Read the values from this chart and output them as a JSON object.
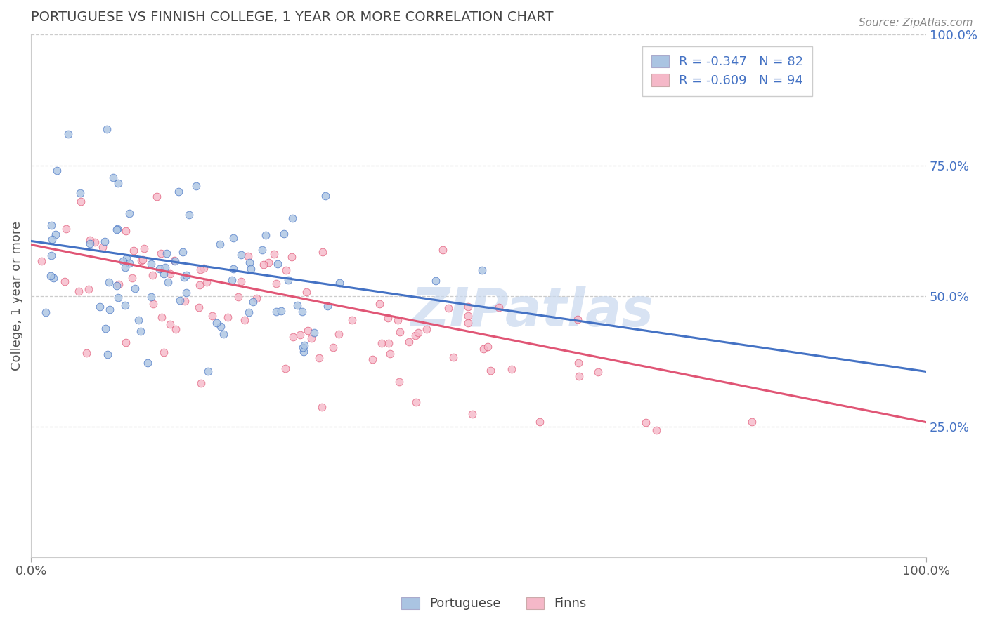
{
  "title": "PORTUGUESE VS FINNISH COLLEGE, 1 YEAR OR MORE CORRELATION CHART",
  "source_text": "Source: ZipAtlas.com",
  "ylabel": "College, 1 year or more",
  "xlim": [
    0,
    1
  ],
  "ylim": [
    0,
    1
  ],
  "x_tick_labels": [
    "0.0%",
    "100.0%"
  ],
  "x_tick_positions": [
    0.0,
    1.0
  ],
  "y_tick_labels_right": [
    "100.0%",
    "75.0%",
    "50.0%",
    "25.0%"
  ],
  "y_tick_values_right": [
    1.0,
    0.75,
    0.5,
    0.25
  ],
  "portuguese_color": "#aac4e2",
  "portuguese_line_color": "#4472c4",
  "finns_color": "#f5b8c8",
  "finns_line_color": "#e05575",
  "portuguese_R": -0.347,
  "portuguese_N": 82,
  "finns_R": -0.609,
  "finns_N": 94,
  "watermark": "ZIPatlas",
  "watermark_color": "#c8d8ee",
  "background_color": "#ffffff",
  "grid_color": "#cccccc",
  "title_color": "#444444",
  "axis_label_color": "#555555",
  "right_tick_color": "#4472c4",
  "legend_text_color": "#4472c4",
  "bottom_legend_labels": [
    "Portuguese",
    "Finns"
  ],
  "title_fontsize": 14,
  "axis_label_fontsize": 13,
  "tick_fontsize": 13,
  "legend_fontsize": 13,
  "source_fontsize": 11
}
